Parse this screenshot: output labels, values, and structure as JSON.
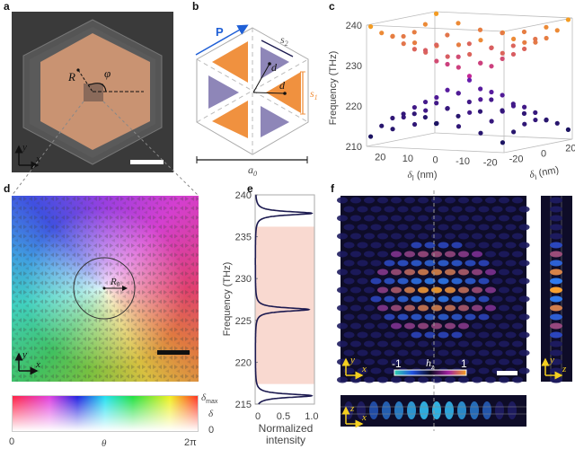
{
  "panel_labels": {
    "a": "a",
    "b": "b",
    "c": "c",
    "d": "d",
    "e": "e",
    "f": "f"
  },
  "panel_a": {
    "radius_label": "R",
    "angle_label": "φ",
    "axis_x": "x",
    "axis_y": "y"
  },
  "panel_b": {
    "polarization_label": "P",
    "s2_label": "s",
    "s2_sub": "2",
    "s1_label": "s",
    "s1_sub": "1",
    "d_label_1": "d",
    "d_label_2": "d",
    "a0_label": "a",
    "a0_sub": "0",
    "colors": {
      "large_triangle": "#f0913f",
      "small_triangle": "#8e86b8",
      "arrow": "#1f5fd6"
    }
  },
  "panel_d": {
    "radius_label": "R",
    "radius_sub": "0",
    "axis_x": "x",
    "axis_y": "y",
    "colorbar": {
      "x_min": "0",
      "x_label": "θ",
      "x_max": "2π",
      "y_max": "δ",
      "y_max_sub": "max",
      "y_label": "δ",
      "y_min": "0"
    }
  },
  "panel_f": {
    "colorbar_min": "-1",
    "colorbar_label": "h",
    "colorbar_sub": "z",
    "colorbar_max": "1",
    "main_axes": {
      "x": "x",
      "y": "y"
    },
    "side_axes": {
      "y": "y",
      "z": "z"
    },
    "bottom_axes": {
      "x": "x",
      "z": "z"
    }
  },
  "chart_data": [
    {
      "type": "scatter3d",
      "panel": "c",
      "zlabel": "Frequency (THz)",
      "xlabel": "δ",
      "xlabel_sub": "I",
      "ylabel": "δ",
      "ylabel_sub": "I",
      "zlim": [
        210,
        240
      ],
      "z_ticks": [
        "240",
        "230",
        "220",
        "210"
      ],
      "x_ticks": [
        "20",
        "10",
        "0",
        "-10",
        "-20"
      ],
      "y_ticks": [
        "-20",
        "0",
        "20"
      ],
      "xlim": [
        -25,
        25
      ],
      "ylim": [
        -25,
        25
      ],
      "grid_delta": [
        -24,
        -16,
        -8,
        0,
        8,
        16,
        24
      ],
      "series": [
        {
          "band": "upper",
          "color_top": "#f5a020",
          "color_bottom": "#c0249a",
          "values": [
            [
              239.6,
              237.5,
              236.1,
              235.6,
              236.1,
              237.5,
              239.6
            ],
            [
              237.5,
              235.1,
              233.2,
              232.4,
              233.2,
              235.1,
              237.5
            ],
            [
              236.1,
              233.2,
              230.5,
              229.2,
              230.5,
              233.2,
              236.1
            ],
            [
              235.6,
              232.4,
              229.2,
              226.5,
              229.2,
              232.4,
              235.6
            ],
            [
              236.1,
              233.2,
              230.5,
              229.2,
              230.5,
              233.2,
              236.1
            ],
            [
              237.5,
              235.1,
              233.2,
              232.4,
              233.2,
              235.1,
              237.5
            ],
            [
              239.6,
              237.5,
              236.1,
              235.6,
              236.1,
              237.5,
              239.6
            ]
          ]
        },
        {
          "band": "lower",
          "color_top": "#6a1fb0",
          "color_bottom": "#1a1460",
          "values": [
            [
              212.4,
              214.5,
              215.9,
              216.4,
              215.9,
              214.5,
              212.4
            ],
            [
              214.5,
              216.9,
              218.8,
              219.6,
              218.8,
              216.9,
              214.5
            ],
            [
              215.9,
              218.8,
              221.5,
              222.8,
              221.5,
              218.8,
              215.9
            ],
            [
              216.4,
              219.6,
              222.8,
              225.5,
              222.8,
              219.6,
              216.4
            ],
            [
              215.9,
              218.8,
              221.5,
              222.8,
              221.5,
              218.8,
              215.9
            ],
            [
              214.5,
              216.9,
              218.8,
              219.6,
              218.8,
              216.9,
              214.5
            ],
            [
              212.4,
              214.5,
              215.9,
              216.4,
              215.9,
              214.5,
              212.4
            ]
          ]
        }
      ]
    },
    {
      "type": "line",
      "panel": "e",
      "ylabel": "Frequency (THz)",
      "xlabel": "Normalized intensity",
      "ylim": [
        215,
        240
      ],
      "xlim": [
        0,
        1.05
      ],
      "y_ticks": [
        "240",
        "235",
        "230",
        "225",
        "220",
        "215"
      ],
      "x_ticks": [
        "0",
        "0.5",
        "1.0"
      ],
      "peaks": [
        {
          "frequency": 216.0,
          "intensity": 1.0
        },
        {
          "frequency": 226.3,
          "intensity": 0.95
        },
        {
          "frequency": 237.8,
          "intensity": 1.0
        }
      ],
      "shaded_band": [
        217.4,
        236.2
      ],
      "colors": {
        "line": "#1c1a50",
        "shade": "#f9d9d0"
      }
    }
  ]
}
